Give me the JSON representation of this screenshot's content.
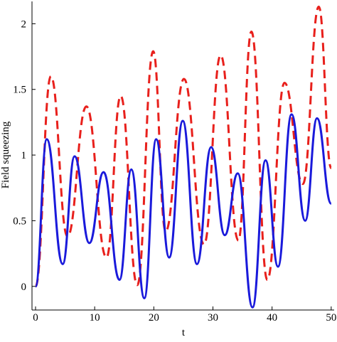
{
  "chart_data": {
    "type": "line",
    "xlabel": "t",
    "ylabel": "Field squeezing",
    "xlim": [
      -0.6,
      50.5
    ],
    "ylim": [
      -0.18,
      2.17
    ],
    "xticks": [
      0,
      10,
      20,
      30,
      40,
      50
    ],
    "yticks": [
      0,
      0.5,
      1,
      1.5,
      2
    ],
    "series": [
      {
        "color": "#e8201c",
        "dash": "12,7",
        "x": [
          0,
          2.6,
          5.4,
          8.6,
          12,
          14.4,
          17.2,
          19.9,
          22,
          25.1,
          28.5,
          31.3,
          34.3,
          36.5,
          39.2,
          42.1,
          45.2,
          47.9,
          50
        ],
        "values": [
          0,
          1.6,
          0.38,
          1.37,
          0.22,
          1.45,
          0.01,
          1.79,
          0.42,
          1.58,
          0.32,
          1.76,
          0.35,
          1.94,
          0.05,
          1.55,
          0.78,
          2.13,
          0.9
        ]
      },
      {
        "color": "#1a1adb",
        "dash": "",
        "x": [
          0,
          1.9,
          4.6,
          6.6,
          9.1,
          11.5,
          14.2,
          16.2,
          18.4,
          20.4,
          22.6,
          24.9,
          27.3,
          29.7,
          32,
          34.2,
          36.7,
          38.9,
          41,
          43.3,
          45.6,
          47.6,
          50
        ],
        "values": [
          0,
          1.12,
          0.17,
          0.99,
          0.33,
          0.87,
          0.05,
          0.89,
          -0.09,
          1.12,
          0.22,
          1.26,
          0.17,
          1.06,
          0.39,
          0.86,
          -0.16,
          0.96,
          0.15,
          1.31,
          0.5,
          1.28,
          0.63
        ]
      }
    ]
  }
}
